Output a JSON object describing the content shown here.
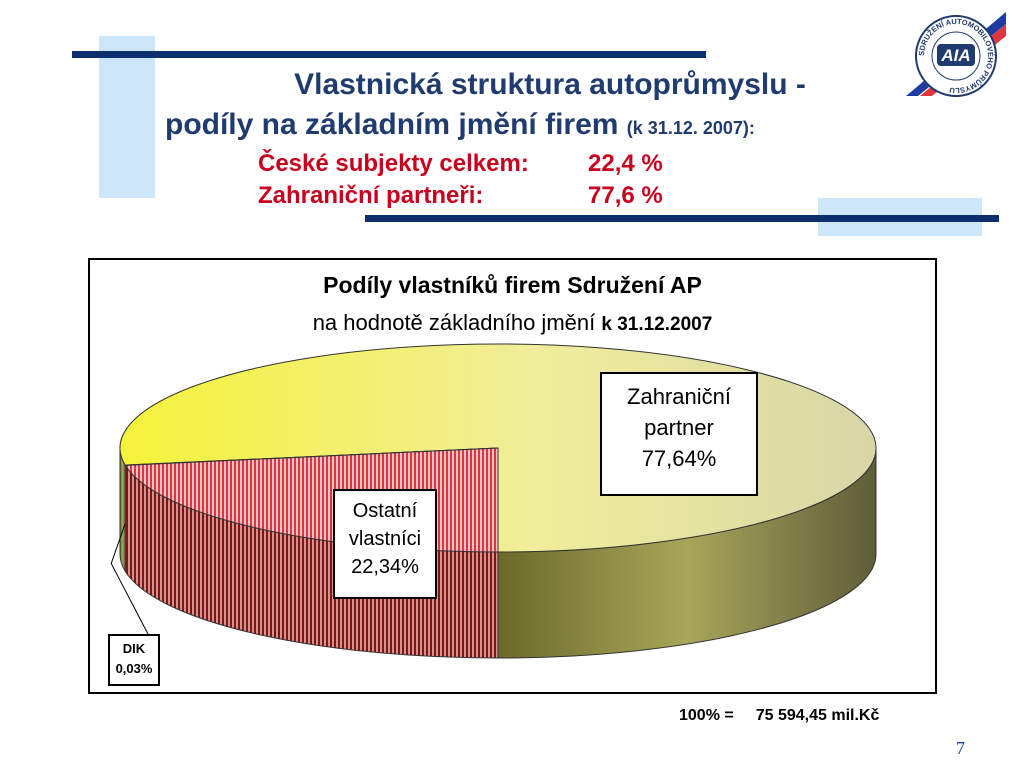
{
  "slide": {
    "title_line1": "Vlastnická struktura autoprůmyslu -",
    "title_line2": "podíly na základním jmění firem",
    "title_date": "(k 31.12. 2007):",
    "summary": [
      {
        "label": "České subjekty celkem:",
        "value": "22,4 %"
      },
      {
        "label": "Zahraniční partneři:",
        "value": "77,6 %"
      }
    ],
    "total_label": "100% =",
    "total_value": "75 594,45  mil.Kč",
    "page_number": "7",
    "logo_text": "AIA",
    "logo_ring_text": "SDRUŽENÍ AUTOMOBILOVÉHO PRŮMYSLU"
  },
  "colors": {
    "title": "#1f3b6f",
    "subtitle": "#c8001e",
    "bar": "#0d2f6e",
    "light_block": "#cde6fa",
    "foreign_slice": "#f5f23a",
    "other_slice": "#e0343f",
    "dik_slice": "#1f3b6f"
  },
  "chart_data": {
    "type": "pie",
    "style": "3d",
    "title": "Podíly vlastníků firem Sdružení AP",
    "subtitle": "na hodnotě základního jmění",
    "subtitle_date": "k 31.12.2007",
    "slices": [
      {
        "name": "Zahraniční partner",
        "label_lines": [
          "Zahraniční",
          "partner",
          "77,64%"
        ],
        "value": 77.64
      },
      {
        "name": "Ostatní vlastníci",
        "label_lines": [
          "Ostatní",
          "vlastníci",
          "22,34%"
        ],
        "value": 22.34
      },
      {
        "name": "DIK",
        "label_lines": [
          "DIK",
          "0,03%"
        ],
        "value": 0.03
      }
    ]
  }
}
